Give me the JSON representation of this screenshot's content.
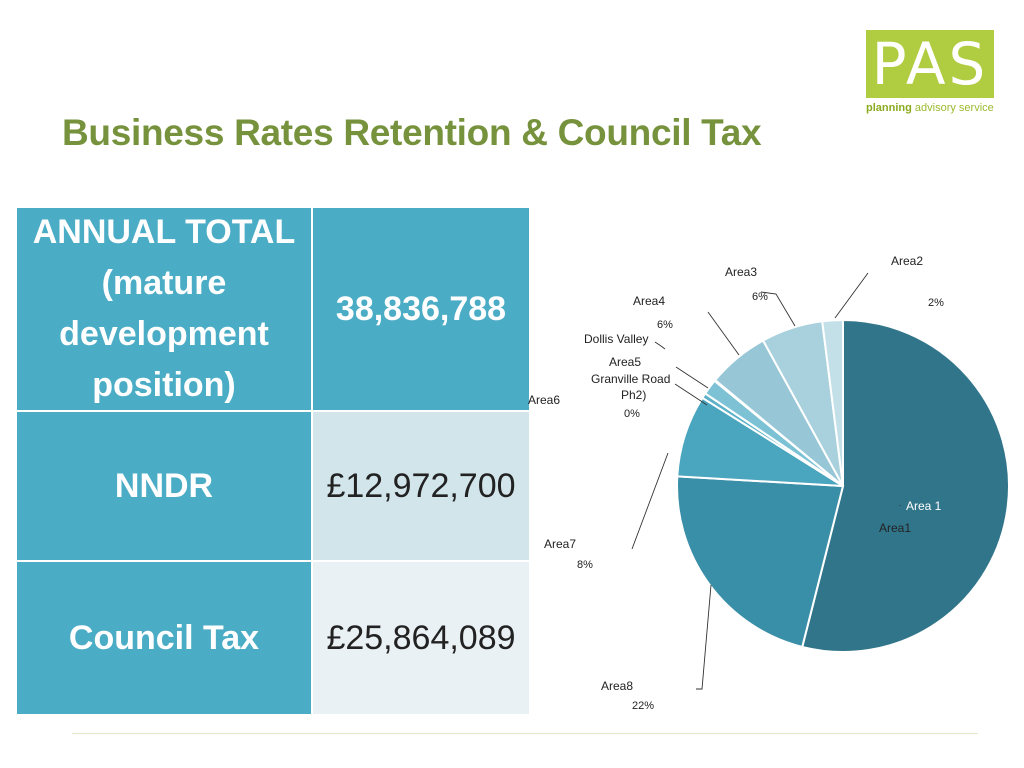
{
  "header": {
    "title": "Business Rates Retention & Council Tax"
  },
  "logo": {
    "text": "PAS",
    "sub_bold": "planning",
    "sub_rest": "advisory service"
  },
  "table": {
    "rows": [
      {
        "label": "ANNUAL TOTAL (mature development position)",
        "value": "38,836,788"
      },
      {
        "label": "NNDR",
        "value": "£12,972,700"
      },
      {
        "label": "Council Tax",
        "value": "£25,864,089"
      }
    ]
  },
  "chart_data": {
    "type": "pie",
    "slices": [
      {
        "name": "Area1",
        "value": 54,
        "color": "#31758a"
      },
      {
        "name": "Area8",
        "value": 22,
        "color": "#3a8fa8"
      },
      {
        "name": "Area7",
        "value": 8,
        "color": "#4aa5be"
      },
      {
        "name": "Area6",
        "value": 0.5,
        "color": "#5ab1c8"
      },
      {
        "name": "Granville Road Ph2",
        "value": 0,
        "color": "#6cbccf"
      },
      {
        "name": "Area5",
        "value": 1.5,
        "color": "#7cc2d4"
      },
      {
        "name": "Dollis Valley",
        "value": 0.1,
        "color": "#8ac8d8"
      },
      {
        "name": "Area4",
        "value": 6,
        "color": "#97c7d6"
      },
      {
        "name": "Area3",
        "value": 6,
        "color": "#a8d1dd"
      },
      {
        "name": "Area2",
        "value": 2,
        "color": "#c3e0e8"
      }
    ],
    "labels": {
      "area1_inner": "Area 1",
      "area1": "Area1",
      "area2": "Area2",
      "area2_pct": "2%",
      "area3": "Area3",
      "area3_pct": "6%",
      "area4": "Area4",
      "area4_pct": "6%",
      "dollis": "Dollis Valley",
      "area5": "Area5",
      "granville1": "Granville Road",
      "granville2": "Ph2)",
      "granville_pct": "0%",
      "area6": "Area6",
      "area7": "Area7",
      "area7_pct": "8%",
      "area8": "Area8",
      "area8_pct": "22%"
    }
  }
}
